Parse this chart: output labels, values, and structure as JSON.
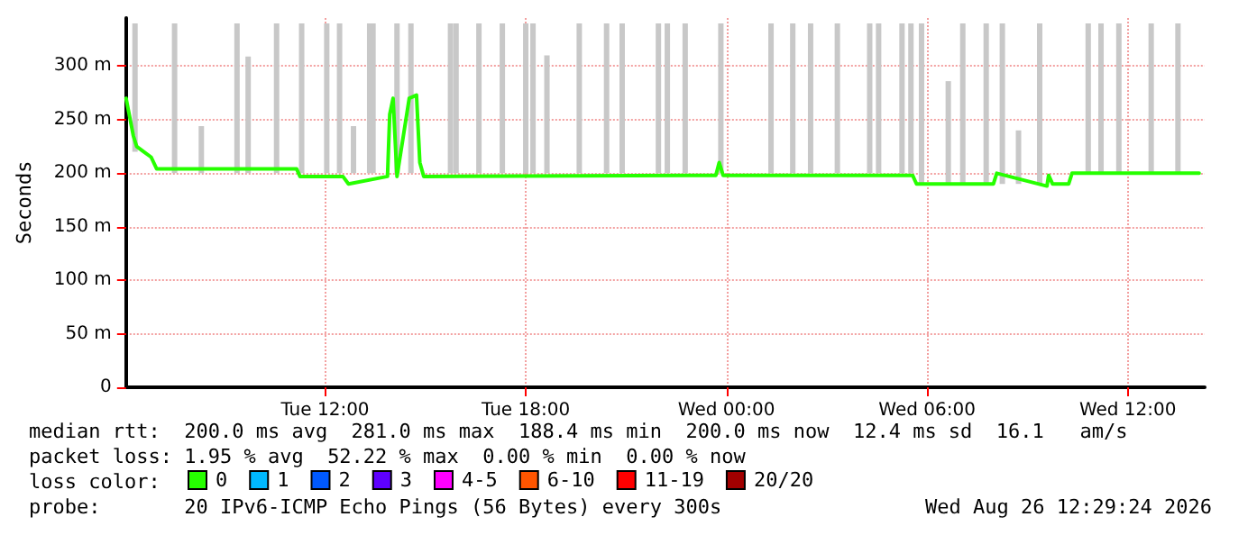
{
  "chart_data": {
    "type": "line",
    "ylabel": "Seconds",
    "legend_title": "loss color:",
    "legend": "bottom",
    "grid": true,
    "marker": "none",
    "line_style": "solid",
    "xlim": [
      "2026-08-25T06:03",
      "2026-08-26T14:18"
    ],
    "xticks": [
      {
        "value": "2026-08-25T12:00",
        "label": "Tue 12:00"
      },
      {
        "value": "2026-08-25T18:00",
        "label": "Tue 18:00"
      },
      {
        "value": "2026-08-26T00:00",
        "label": "Wed 00:00"
      },
      {
        "value": "2026-08-26T06:00",
        "label": "Wed 06:00"
      },
      {
        "value": "2026-08-26T12:00",
        "label": "Wed 12:00"
      }
    ],
    "ylim": [
      0,
      345
    ],
    "yticks": [
      0,
      {
        "value": 50,
        "label": "50 m"
      },
      {
        "value": 100,
        "label": "100 m"
      },
      {
        "value": 150,
        "label": "150 m"
      },
      {
        "value": 200,
        "label": "200 m"
      },
      {
        "value": 250,
        "label": "250 m"
      },
      {
        "value": 300,
        "label": "300 m"
      }
    ],
    "x": [
      "2026-08-25T06:03",
      "2026-08-25T06:16",
      "2026-08-25T06:22",
      "2026-08-25T06:35",
      "2026-08-25T06:48",
      "2026-08-25T06:58",
      "2026-08-25T11:09",
      "2026-08-25T11:15",
      "2026-08-25T12:32",
      "2026-08-25T12:42",
      "2026-08-25T13:52",
      "2026-08-25T13:56",
      "2026-08-25T14:02",
      "2026-08-25T14:09",
      "2026-08-25T14:25",
      "2026-08-25T14:31",
      "2026-08-25T14:44",
      "2026-08-25T14:50",
      "2026-08-25T14:57",
      "2026-08-25T23:41",
      "2026-08-25T23:47",
      "2026-08-25T23:54",
      "2026-08-26T05:34",
      "2026-08-26T05:41",
      "2026-08-26T07:59",
      "2026-08-26T08:05",
      "2026-08-26T09:35",
      "2026-08-26T09:38",
      "2026-08-26T09:45",
      "2026-08-26T10:14",
      "2026-08-26T10:20",
      "2026-08-26T14:08"
    ],
    "series": [
      {
        "type": "bar",
        "color": "#c8c8c8",
        "x": [
          "2026-08-25T06:19",
          "2026-08-25T07:30",
          "2026-08-25T08:18",
          "2026-08-25T09:22",
          "2026-08-25T09:42",
          "2026-08-25T10:33",
          "2026-08-25T11:18",
          "2026-08-25T12:03",
          "2026-08-25T12:26",
          "2026-08-25T12:51",
          "2026-08-25T13:20",
          "2026-08-25T13:26",
          "2026-08-25T14:09",
          "2026-08-25T14:34",
          "2026-08-25T15:45",
          "2026-08-25T15:55",
          "2026-08-25T16:36",
          "2026-08-25T17:18",
          "2026-08-25T18:00",
          "2026-08-25T18:13",
          "2026-08-25T18:38",
          "2026-08-25T19:36",
          "2026-08-25T20:25",
          "2026-08-25T20:53",
          "2026-08-25T21:58",
          "2026-08-25T22:14",
          "2026-08-25T22:46",
          "2026-08-25T23:50",
          "2026-08-26T01:20",
          "2026-08-26T01:59",
          "2026-08-26T02:31",
          "2026-08-26T03:19",
          "2026-08-26T04:17",
          "2026-08-26T04:33",
          "2026-08-26T05:15",
          "2026-08-26T05:31",
          "2026-08-26T05:50",
          "2026-08-26T06:38",
          "2026-08-26T07:04",
          "2026-08-26T07:46",
          "2026-08-26T08:15",
          "2026-08-26T08:44",
          "2026-08-26T09:22",
          "2026-08-26T10:49",
          "2026-08-26T11:12",
          "2026-08-26T11:44",
          "2026-08-26T12:42",
          "2026-08-26T13:30"
        ],
        "base": [
          220,
          200,
          200,
          200,
          200,
          200,
          200,
          200,
          200,
          200,
          200,
          200,
          200,
          200,
          200,
          200,
          200,
          200,
          200,
          200,
          200,
          200,
          200,
          200,
          200,
          200,
          200,
          200,
          200,
          200,
          200,
          200,
          200,
          200,
          200,
          200,
          190,
          190,
          190,
          190,
          190,
          190,
          190,
          200,
          200,
          200,
          200,
          200
        ],
        "values": [
          120,
          140,
          44,
          140,
          109,
          140,
          140,
          140,
          140,
          44,
          140,
          140,
          140,
          140,
          140,
          140,
          140,
          140,
          140,
          140,
          110,
          140,
          140,
          140,
          140,
          140,
          140,
          140,
          140,
          140,
          140,
          140,
          140,
          140,
          140,
          140,
          150,
          96,
          150,
          150,
          150,
          50,
          150,
          140,
          140,
          140,
          140,
          140
        ]
      },
      {
        "name": "0",
        "color": "#26ff00",
        "values": [
          270,
          235,
          225,
          220,
          215,
          204,
          204,
          197,
          197,
          190,
          197,
          255,
          270,
          197,
          250,
          270,
          273,
          210,
          197,
          198,
          210,
          198,
          198,
          190,
          190,
          200,
          188,
          198,
          190,
          190,
          200,
          200
        ]
      },
      {
        "name": "1",
        "color": "#00b8ff",
        "values": [
          null,
          null,
          null,
          null,
          null,
          null,
          null,
          null,
          null,
          null,
          null,
          null,
          null,
          null,
          null,
          null,
          null,
          null,
          null,
          null,
          null,
          null,
          null,
          null,
          null,
          null,
          null,
          null,
          null,
          null,
          null,
          null
        ]
      },
      {
        "name": "2",
        "color": "#0059ff",
        "values": [
          null,
          null,
          null,
          null,
          null,
          null,
          null,
          null,
          null,
          null,
          null,
          null,
          null,
          null,
          null,
          null,
          null,
          null,
          null,
          null,
          null,
          null,
          null,
          null,
          null,
          null,
          null,
          null,
          null,
          null,
          null,
          null
        ]
      },
      {
        "name": "3",
        "color": "#5e00ff",
        "values": [
          null,
          null,
          null,
          null,
          null,
          null,
          null,
          null,
          null,
          null,
          null,
          null,
          null,
          null,
          null,
          null,
          null,
          null,
          null,
          null,
          null,
          null,
          null,
          null,
          null,
          null,
          null,
          null,
          null,
          null,
          null,
          null
        ]
      },
      {
        "name": "4-5",
        "color": "#ff00ff",
        "values": [
          null,
          null,
          null,
          null,
          null,
          null,
          null,
          null,
          null,
          null,
          null,
          null,
          null,
          null,
          null,
          null,
          null,
          null,
          null,
          null,
          null,
          null,
          null,
          null,
          null,
          null,
          null,
          null,
          null,
          null,
          null,
          null
        ]
      },
      {
        "name": "6-10",
        "color": "#ff5500",
        "values": [
          null,
          null,
          null,
          null,
          null,
          null,
          null,
          null,
          null,
          null,
          null,
          null,
          null,
          null,
          null,
          null,
          null,
          null,
          null,
          null,
          null,
          null,
          null,
          null,
          null,
          null,
          null,
          null,
          null,
          null,
          null,
          null
        ]
      },
      {
        "name": "11-19",
        "color": "#ff0000",
        "values": [
          null,
          null,
          null,
          null,
          null,
          null,
          null,
          null,
          null,
          null,
          null,
          null,
          null,
          null,
          null,
          null,
          null,
          null,
          null,
          null,
          null,
          null,
          null,
          null,
          null,
          null,
          null,
          null,
          null,
          null,
          null,
          null
        ]
      },
      {
        "name": "20/20",
        "color": "#a10000",
        "values": [
          null,
          null,
          null,
          null,
          null,
          null,
          null,
          null,
          null,
          null,
          null,
          null,
          null,
          null,
          null,
          null,
          null,
          null,
          null,
          null,
          null,
          null,
          null,
          null,
          null,
          null,
          null,
          null,
          null,
          null,
          null,
          null
        ]
      }
    ],
    "annotations": [
      "median rtt:  200.0 ms avg  281.0 ms max  188.4 ms min  200.0 ms now  12.4 ms sd  16.1   am/s",
      "packet loss: 1.95 % avg  52.22 % max  0.00 % min  0.00 % now",
      "probe:       20 IPv6-ICMP Echo Pings (56 Bytes) every 300s",
      "Wed Aug 26 12:29:24 2026"
    ]
  }
}
